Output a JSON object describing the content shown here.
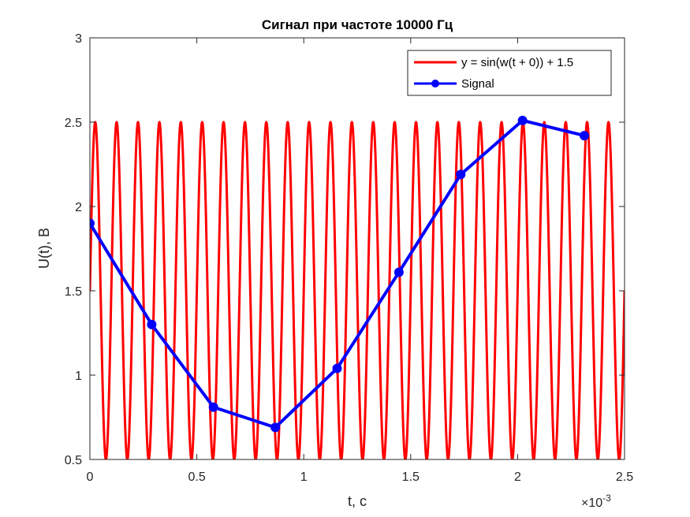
{
  "chart_data": {
    "type": "line",
    "title": "Сигнал при частоте 10000 Гц",
    "xlabel": "t, c",
    "ylabel": "U(t), В",
    "x_exponent_base": "×10",
    "x_exponent_power": "-3",
    "xlim": [
      0,
      2.5
    ],
    "ylim": [
      0.5,
      3
    ],
    "x_ticks": [
      0,
      0.5,
      1,
      1.5,
      2,
      2.5
    ],
    "x_tick_labels": [
      "0",
      "0.5",
      "1",
      "1.5",
      "2",
      "2.5"
    ],
    "y_ticks": [
      0.5,
      1,
      1.5,
      2,
      2.5,
      3
    ],
    "y_tick_labels": [
      "0.5",
      "1",
      "1.5",
      "2",
      "2.5",
      "3"
    ],
    "grid": false,
    "legend_position": "top-right",
    "series": [
      {
        "name": "y = sin(w(t + 0)) + 1.5",
        "color": "#ff0000",
        "function": {
          "frequency_hz": 10000,
          "amplitude": 1,
          "offset": 1.5,
          "phase": 0,
          "x_scale": 0.001
        }
      },
      {
        "name": "Signal",
        "color": "#0000ff",
        "marker": "circle",
        "x": [
          0,
          0.289,
          0.578,
          0.867,
          1.156,
          1.445,
          1.734,
          2.023,
          2.312
        ],
        "y": [
          1.9,
          1.3,
          0.81,
          0.69,
          1.04,
          1.61,
          2.19,
          2.51,
          2.42
        ]
      }
    ]
  }
}
